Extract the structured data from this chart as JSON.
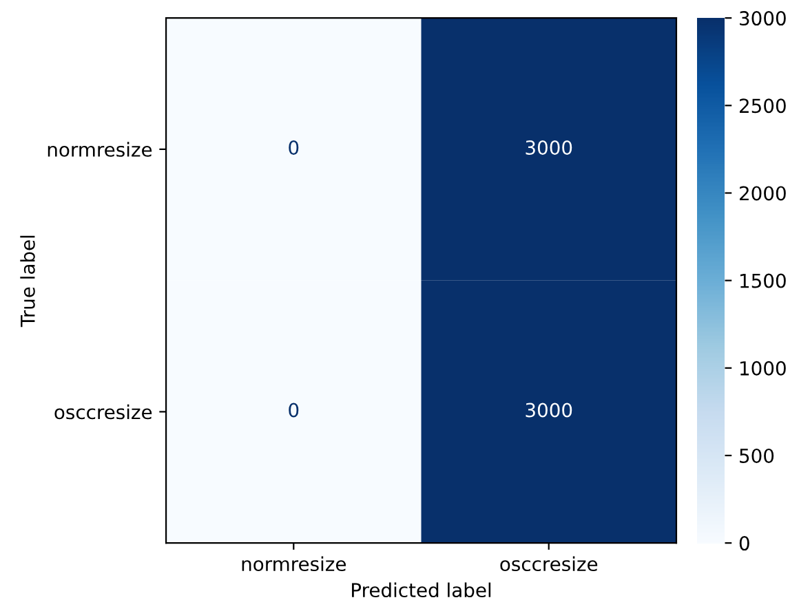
{
  "chart_data": {
    "type": "heatmap",
    "xlabel": "Predicted label",
    "ylabel": "True label",
    "categories": [
      "normresize",
      "osccresize"
    ],
    "y_categories": [
      "normresize",
      "osccresize"
    ],
    "cells": [
      [
        0,
        3000
      ],
      [
        0,
        3000
      ]
    ],
    "clim": [
      0,
      3000
    ],
    "cticks": [
      0,
      500,
      1000,
      1500,
      2000,
      2500,
      3000
    ],
    "data_labels": true,
    "grid": false
  }
}
